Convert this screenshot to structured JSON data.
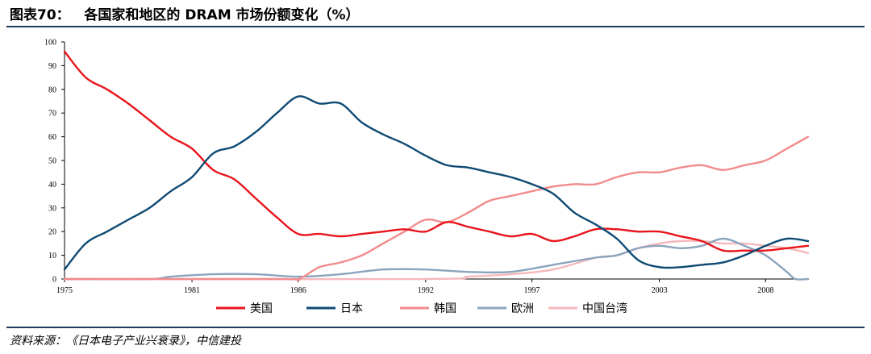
{
  "header": {
    "title": "图表70：   各国家和地区的 DRAM 市场份额变化（%）"
  },
  "source": "资料来源：《日本电子产业兴衰录》，中信建投",
  "chart_data": {
    "type": "line",
    "title": "",
    "xlabel": "",
    "ylabel": "",
    "xlim": [
      1975,
      2010
    ],
    "ylim": [
      0,
      100
    ],
    "x_ticks": [
      1975,
      1981,
      1986,
      1992,
      1997,
      2003,
      2008
    ],
    "y_ticks": [
      0,
      10,
      20,
      30,
      40,
      50,
      60,
      70,
      80,
      90,
      100
    ],
    "grid": false,
    "legend_position": "bottom",
    "series": [
      {
        "name": "美国",
        "color": "#e8151b",
        "points": [
          [
            1975,
            96
          ],
          [
            1976,
            85
          ],
          [
            1977,
            80
          ],
          [
            1978,
            74
          ],
          [
            1979,
            67
          ],
          [
            1980,
            60
          ],
          [
            1981,
            55
          ],
          [
            1982,
            46
          ],
          [
            1983,
            42
          ],
          [
            1984,
            34
          ],
          [
            1985,
            26
          ],
          [
            1986,
            19
          ],
          [
            1987,
            19
          ],
          [
            1988,
            18
          ],
          [
            1989,
            19
          ],
          [
            1990,
            20
          ],
          [
            1991,
            21
          ],
          [
            1992,
            20
          ],
          [
            1993,
            24
          ],
          [
            1994,
            22
          ],
          [
            1995,
            20
          ],
          [
            1996,
            18
          ],
          [
            1997,
            19
          ],
          [
            1998,
            16
          ],
          [
            1999,
            18
          ],
          [
            2000,
            21
          ],
          [
            2001,
            21
          ],
          [
            2002,
            20
          ],
          [
            2003,
            20
          ],
          [
            2004,
            18
          ],
          [
            2005,
            16
          ],
          [
            2006,
            12
          ],
          [
            2007,
            12
          ],
          [
            2008,
            12
          ],
          [
            2009,
            13
          ],
          [
            2010,
            14
          ]
        ]
      },
      {
        "name": "日本",
        "color": "#0e4a73",
        "points": [
          [
            1975,
            4
          ],
          [
            1976,
            15
          ],
          [
            1977,
            20
          ],
          [
            1978,
            25
          ],
          [
            1979,
            30
          ],
          [
            1980,
            37
          ],
          [
            1981,
            43
          ],
          [
            1982,
            53
          ],
          [
            1983,
            56
          ],
          [
            1984,
            62
          ],
          [
            1985,
            70
          ],
          [
            1986,
            77
          ],
          [
            1987,
            74
          ],
          [
            1988,
            74
          ],
          [
            1989,
            66
          ],
          [
            1990,
            61
          ],
          [
            1991,
            57
          ],
          [
            1992,
            52
          ],
          [
            1993,
            48
          ],
          [
            1994,
            47
          ],
          [
            1995,
            45
          ],
          [
            1996,
            43
          ],
          [
            1997,
            40
          ],
          [
            1998,
            36
          ],
          [
            1999,
            28
          ],
          [
            2000,
            23
          ],
          [
            2001,
            17
          ],
          [
            2002,
            8
          ],
          [
            2003,
            5
          ],
          [
            2004,
            5
          ],
          [
            2005,
            6
          ],
          [
            2006,
            7
          ],
          [
            2007,
            10
          ],
          [
            2008,
            14
          ],
          [
            2009,
            17
          ],
          [
            2010,
            16
          ]
        ]
      },
      {
        "name": "韩国",
        "color": "#f28b8b",
        "points": [
          [
            1975,
            0
          ],
          [
            1985,
            0
          ],
          [
            1986,
            0
          ],
          [
            1987,
            5
          ],
          [
            1988,
            7
          ],
          [
            1989,
            10
          ],
          [
            1990,
            15
          ],
          [
            1991,
            20
          ],
          [
            1992,
            25
          ],
          [
            1993,
            24
          ],
          [
            1994,
            28
          ],
          [
            1995,
            33
          ],
          [
            1996,
            35
          ],
          [
            1997,
            37
          ],
          [
            1998,
            39
          ],
          [
            1999,
            40
          ],
          [
            2000,
            40
          ],
          [
            2001,
            43
          ],
          [
            2002,
            45
          ],
          [
            2003,
            45
          ],
          [
            2004,
            47
          ],
          [
            2005,
            48
          ],
          [
            2006,
            46
          ],
          [
            2007,
            48
          ],
          [
            2008,
            50
          ],
          [
            2009,
            55
          ],
          [
            2010,
            60
          ]
        ]
      },
      {
        "name": "欧洲",
        "color": "#8ba4bd",
        "points": [
          [
            1975,
            0
          ],
          [
            1979,
            0
          ],
          [
            1980,
            1
          ],
          [
            1982,
            2
          ],
          [
            1984,
            2
          ],
          [
            1986,
            1
          ],
          [
            1988,
            2
          ],
          [
            1990,
            4
          ],
          [
            1992,
            4
          ],
          [
            1994,
            3
          ],
          [
            1996,
            3
          ],
          [
            1998,
            6
          ],
          [
            2000,
            9
          ],
          [
            2001,
            10
          ],
          [
            2002,
            13
          ],
          [
            2003,
            14
          ],
          [
            2004,
            13
          ],
          [
            2005,
            14
          ],
          [
            2006,
            17
          ],
          [
            2007,
            14
          ],
          [
            2008,
            10
          ],
          [
            2009,
            3
          ],
          [
            2009.4,
            0
          ],
          [
            2010,
            0
          ]
        ]
      },
      {
        "name": "中国台湾",
        "color": "#f7b8bd",
        "points": [
          [
            1975,
            0
          ],
          [
            1992,
            0
          ],
          [
            1994,
            1
          ],
          [
            1996,
            2
          ],
          [
            1998,
            4
          ],
          [
            2000,
            9
          ],
          [
            2001,
            10
          ],
          [
            2002,
            13
          ],
          [
            2003,
            15
          ],
          [
            2004,
            16
          ],
          [
            2005,
            16
          ],
          [
            2006,
            15
          ],
          [
            2007,
            15
          ],
          [
            2008,
            14
          ],
          [
            2009,
            13
          ],
          [
            2010,
            11
          ]
        ]
      }
    ]
  }
}
